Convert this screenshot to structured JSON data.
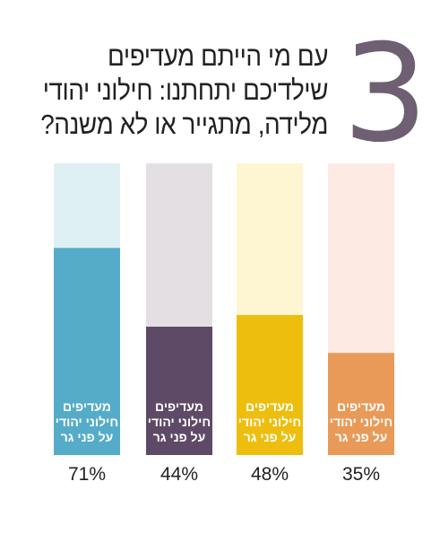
{
  "heading": {
    "number": "3",
    "question_lines": [
      "עם מי הייתם מעדיפים",
      "שילדיכם יתחתנו: חילוני יהודי",
      "מלידה, מתגייר או לא משנה?"
    ]
  },
  "chart_data": {
    "type": "bar",
    "title": "",
    "bars": [
      {
        "value": 71,
        "label": "71%",
        "inner_label": [
          "מעדיפים",
          "חילוני יהודי",
          "על פני גר"
        ],
        "color": "#55acc8",
        "track_color": "#dff0f4"
      },
      {
        "value": 44,
        "label": "44%",
        "inner_label": [
          "מעדיפים",
          "חילוני יהודי",
          "על פני גר"
        ],
        "color": "#5e4a67",
        "track_color": "#e3dfe3"
      },
      {
        "value": 48,
        "label": "48%",
        "inner_label": [
          "מעדיפים",
          "חילוני יהודי",
          "על פני גר"
        ],
        "color": "#eebe0e",
        "track_color": "#fef5d3"
      },
      {
        "value": 35,
        "label": "35%",
        "inner_label": [
          "מעדיפים",
          "חילוני יהודי",
          "על פני גר"
        ],
        "color": "#e99a58",
        "track_color": "#fdeae2"
      }
    ],
    "ylim": [
      0,
      100
    ]
  }
}
